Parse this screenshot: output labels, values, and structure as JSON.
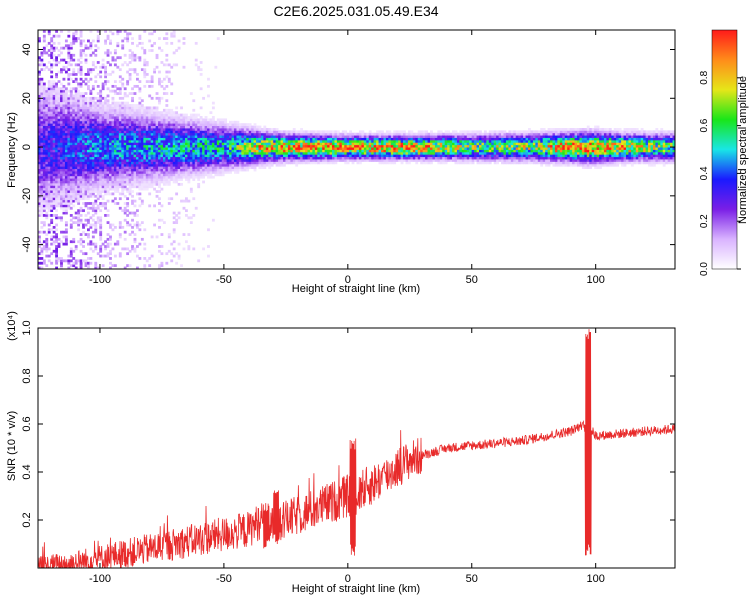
{
  "chart_data": [
    {
      "type": "heatmap",
      "title": "C2E6.2025.031.05.49.E34",
      "xlabel": "Height of straight line (km)",
      "ylabel": "Frequency (Hz)",
      "xlim": [
        -125,
        132
      ],
      "ylim": [
        -50,
        48
      ],
      "xticks": [
        "-100",
        "-50",
        "0",
        "50",
        "100"
      ],
      "yticks": [
        "-40",
        "-20",
        "0",
        "20",
        "40"
      ],
      "colorbar": {
        "label": "Normalized spectral amplitude",
        "range": [
          0.0,
          1.0
        ],
        "ticks": [
          "0.0",
          "0.2",
          "0.4",
          "0.6",
          "0.8"
        ],
        "colormap": [
          "#ffffff",
          "#d9b3ff",
          "#7a1fe6",
          "#1a1aff",
          "#19e6e6",
          "#19e619",
          "#e6e619",
          "#ff8c1a",
          "#ff1a1a"
        ]
      },
      "band_profile": {
        "x": [
          -125,
          -100,
          -75,
          -50,
          -35,
          -25,
          0,
          25,
          50,
          75,
          90,
          97,
          110,
          132
        ],
        "half_width_hz": [
          14,
          9,
          7,
          5,
          3.5,
          3,
          2.6,
          2.6,
          2.8,
          3,
          3.2,
          3.5,
          3,
          3
        ],
        "peak_amplitude": [
          0.35,
          0.5,
          0.55,
          0.6,
          0.9,
          0.95,
          1.0,
          1.0,
          0.75,
          0.8,
          1.0,
          1.0,
          0.95,
          0.7
        ]
      }
    },
    {
      "type": "line",
      "xlabel": "Height of straight line (km)",
      "ylabel": "SNR (10 * v/v)",
      "ylabel_multiplier": "(x10⁴)",
      "xlim": [
        -125,
        132
      ],
      "ylim": [
        0,
        1.0
      ],
      "xticks": [
        "-100",
        "-50",
        "0",
        "50",
        "100"
      ],
      "yticks": [
        "0.2",
        "0.4",
        "0.6",
        "0.8",
        "1.0"
      ],
      "color": "#e82a2a",
      "series": [
        {
          "x": [
            -125,
            -110,
            -100,
            -90,
            -80,
            -70,
            -60,
            -50,
            -40,
            -35,
            -30,
            -25,
            -20,
            -10,
            -5,
            0,
            2,
            5,
            10,
            15,
            20,
            25,
            30,
            40,
            50,
            60,
            70,
            80,
            90,
            95,
            97,
            98,
            100,
            110,
            120,
            132
          ],
          "values": [
            0.0,
            0.02,
            0.04,
            0.06,
            0.08,
            0.1,
            0.12,
            0.14,
            0.16,
            0.2,
            0.18,
            0.2,
            0.22,
            0.26,
            0.28,
            0.3,
            0.3,
            0.32,
            0.35,
            0.38,
            0.42,
            0.45,
            0.47,
            0.5,
            0.51,
            0.52,
            0.53,
            0.55,
            0.57,
            0.6,
            0.55,
            0.58,
            0.55,
            0.56,
            0.57,
            0.58
          ]
        }
      ],
      "spikes": [
        {
          "x": 2,
          "min": 0.05,
          "max": 0.54
        },
        {
          "x": -33,
          "min": 0.08,
          "max": 0.28
        },
        {
          "x": -29,
          "min": 0.1,
          "max": 0.34
        },
        {
          "x": 97,
          "min": 0.05,
          "max": 1.0
        }
      ]
    }
  ]
}
